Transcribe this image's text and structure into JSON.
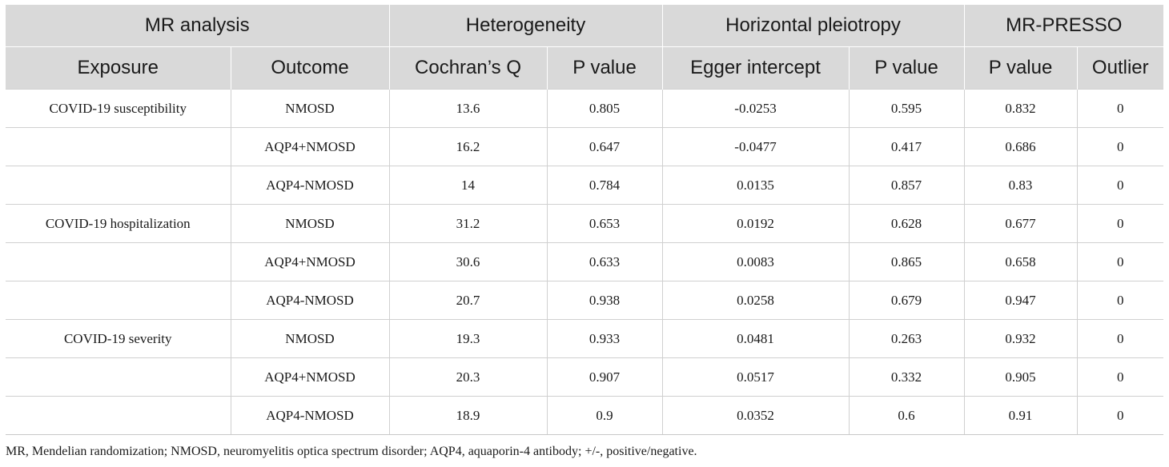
{
  "header": {
    "groups": [
      "MR analysis",
      "Heterogeneity",
      "Horizontal pleiotropy",
      "MR-PRESSO"
    ],
    "columns": [
      "Exposure",
      "Outcome",
      "Cochran’s Q",
      "P value",
      "Egger intercept",
      "P value",
      "P value",
      "Outlier"
    ]
  },
  "rows": [
    [
      "COVID-19 susceptibility",
      "NMOSD",
      "13.6",
      "0.805",
      "-0.0253",
      "0.595",
      "0.832",
      "0"
    ],
    [
      "",
      "AQP4+NMOSD",
      "16.2",
      "0.647",
      "-0.0477",
      "0.417",
      "0.686",
      "0"
    ],
    [
      "",
      "AQP4-NMOSD",
      "14",
      "0.784",
      "0.0135",
      "0.857",
      "0.83",
      "0"
    ],
    [
      "COVID-19 hospitalization",
      "NMOSD",
      "31.2",
      "0.653",
      "0.0192",
      "0.628",
      "0.677",
      "0"
    ],
    [
      "",
      "AQP4+NMOSD",
      "30.6",
      "0.633",
      "0.0083",
      "0.865",
      "0.658",
      "0"
    ],
    [
      "",
      "AQP4-NMOSD",
      "20.7",
      "0.938",
      "0.0258",
      "0.679",
      "0.947",
      "0"
    ],
    [
      "COVID-19 severity",
      "NMOSD",
      "19.3",
      "0.933",
      "0.0481",
      "0.263",
      "0.932",
      "0"
    ],
    [
      "",
      "AQP4+NMOSD",
      "20.3",
      "0.907",
      "0.0517",
      "0.332",
      "0.905",
      "0"
    ],
    [
      "",
      "AQP4-NMOSD",
      "18.9",
      "0.9",
      "0.0352",
      "0.6",
      "0.91",
      "0"
    ]
  ],
  "footnote": "MR, Mendelian randomization; NMOSD, neuromyelitis optica spectrum disorder; AQP4, aquaporin-4 antibody; +/-, positive/negative."
}
